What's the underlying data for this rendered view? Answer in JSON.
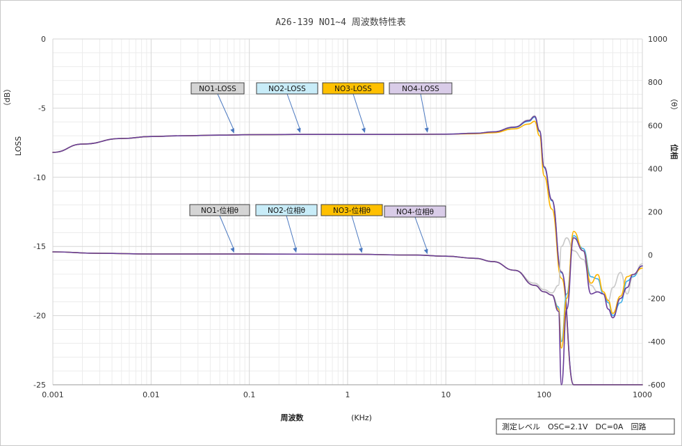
{
  "chart_data": {
    "type": "line",
    "title": "A26-139 NO1~4 周波数特性表",
    "xlabel": "周波数",
    "xunit": "(KHz)",
    "ylabel_left": "LOSS",
    "ylabel_left_unit": "（dB）",
    "ylabel_right": "位相",
    "ylabel_right_unit": "（θ）",
    "xscale": "log",
    "xlim": [
      0.001,
      1000
    ],
    "ylim_left": [
      -25,
      0
    ],
    "ylim_right": [
      -600,
      1000
    ],
    "grid": true,
    "x_ticks": [
      "0.001",
      "0.01",
      "0.1",
      "1",
      "10",
      "100",
      "1000"
    ],
    "y_left_ticks": [
      "0",
      "-5",
      "-10",
      "-15",
      "-20",
      "-25"
    ],
    "y_right_ticks": [
      "1000",
      "800",
      "600",
      "400",
      "200",
      "0",
      "-200",
      "-400",
      "-600"
    ],
    "note": "測定レベル　OSC=2.1V　DC=0A　回路",
    "series": [
      {
        "name": "NO1-LOSS",
        "axis": "left",
        "color": "#c8c8c8",
        "x": [
          0.001,
          0.002,
          0.005,
          0.01,
          0.02,
          0.05,
          0.1,
          0.3,
          1,
          3,
          10,
          20,
          30,
          50,
          70,
          80,
          90,
          100,
          120,
          150,
          200,
          300,
          500,
          700,
          1000
        ],
        "y": [
          -8.2,
          -7.6,
          -7.2,
          -7.05,
          -7.0,
          -6.95,
          -6.92,
          -6.9,
          -6.9,
          -6.9,
          -6.88,
          -6.82,
          -6.72,
          -6.35,
          -5.85,
          -5.55,
          -6.6,
          -9.2,
          -11.6,
          -16.8,
          -25.2,
          -25.4,
          -25.3,
          -25.3,
          -25.2
        ]
      },
      {
        "name": "NO2-LOSS",
        "axis": "left",
        "color": "#3aaee8",
        "x": [
          0.001,
          0.002,
          0.005,
          0.01,
          0.02,
          0.05,
          0.1,
          0.3,
          1,
          3,
          10,
          20,
          30,
          50,
          70,
          80,
          90,
          100,
          120,
          150,
          200,
          300,
          500,
          700,
          1000
        ],
        "y": [
          -8.2,
          -7.6,
          -7.2,
          -7.05,
          -7.0,
          -6.95,
          -6.92,
          -6.9,
          -6.9,
          -6.9,
          -6.88,
          -6.82,
          -6.72,
          -6.4,
          -5.95,
          -5.65,
          -6.7,
          -9.3,
          -11.7,
          -16.9,
          -25.2,
          -25.4,
          -25.3,
          -25.3,
          -25.2
        ]
      },
      {
        "name": "NO3-LOSS",
        "axis": "left",
        "color": "#ffb400",
        "x": [
          0.001,
          0.002,
          0.005,
          0.01,
          0.02,
          0.05,
          0.1,
          0.3,
          1,
          3,
          10,
          20,
          30,
          50,
          70,
          80,
          90,
          100,
          120,
          150,
          200,
          300,
          500,
          700,
          1000
        ],
        "y": [
          -8.2,
          -7.6,
          -7.2,
          -7.05,
          -7.0,
          -6.95,
          -6.92,
          -6.9,
          -6.9,
          -6.9,
          -6.88,
          -6.85,
          -6.78,
          -6.5,
          -6.15,
          -5.95,
          -7.0,
          -9.9,
          -12.3,
          -17.3,
          -25.2,
          -25.4,
          -25.3,
          -25.3,
          -25.2
        ]
      },
      {
        "name": "NO4-LOSS",
        "axis": "left",
        "color": "#6a3d9a",
        "x": [
          0.001,
          0.002,
          0.005,
          0.01,
          0.02,
          0.05,
          0.1,
          0.3,
          1,
          3,
          10,
          20,
          30,
          50,
          70,
          80,
          90,
          100,
          120,
          150,
          200,
          300,
          500,
          700,
          1000
        ],
        "y": [
          -8.2,
          -7.6,
          -7.2,
          -7.05,
          -7.0,
          -6.95,
          -6.92,
          -6.9,
          -6.9,
          -6.9,
          -6.88,
          -6.82,
          -6.72,
          -6.38,
          -5.9,
          -5.6,
          -6.65,
          -9.25,
          -11.65,
          -16.85,
          -25.2,
          -25.4,
          -25.3,
          -25.3,
          -25.2
        ]
      },
      {
        "name": "NO1-位相θ",
        "axis": "right",
        "color": "#c8c8c8",
        "x": [
          0.001,
          0.003,
          0.01,
          0.1,
          1,
          5,
          10,
          20,
          30,
          50,
          80,
          100,
          120,
          140,
          150,
          170,
          200,
          250,
          300,
          350,
          400,
          450,
          500,
          600,
          700,
          800,
          1000
        ],
        "y": [
          15,
          8,
          5,
          5,
          4,
          0,
          -5,
          -15,
          -30,
          -70,
          -130,
          -160,
          -175,
          -140,
          40,
          80,
          20,
          -20,
          -140,
          -170,
          -180,
          -210,
          -150,
          -80,
          -180,
          -100,
          -40
        ]
      },
      {
        "name": "NO2-位相θ",
        "axis": "right",
        "color": "#3aaee8",
        "x": [
          0.001,
          0.003,
          0.01,
          0.1,
          1,
          5,
          10,
          20,
          30,
          50,
          80,
          100,
          120,
          140,
          150,
          170,
          200,
          250,
          300,
          350,
          400,
          450,
          500,
          600,
          700,
          800,
          1000
        ],
        "y": [
          15,
          8,
          5,
          5,
          4,
          0,
          -5,
          -15,
          -30,
          -70,
          -140,
          -170,
          -185,
          -240,
          -400,
          -180,
          90,
          30,
          -100,
          -110,
          -180,
          -220,
          -280,
          -220,
          -120,
          -100,
          -50
        ]
      },
      {
        "name": "NO3-位相θ",
        "axis": "right",
        "color": "#ffb400",
        "x": [
          0.001,
          0.003,
          0.01,
          0.1,
          1,
          5,
          10,
          20,
          30,
          50,
          80,
          100,
          120,
          140,
          150,
          170,
          200,
          250,
          300,
          350,
          400,
          450,
          500,
          600,
          700,
          800,
          1000
        ],
        "y": [
          15,
          8,
          5,
          5,
          4,
          0,
          -5,
          -15,
          -30,
          -70,
          -140,
          -170,
          -185,
          -250,
          -430,
          -200,
          110,
          20,
          -130,
          -90,
          -170,
          -210,
          -270,
          -190,
          -100,
          -90,
          -60
        ]
      },
      {
        "name": "NO4-位相θ",
        "axis": "right",
        "color": "#6a3d9a",
        "x": [
          0.001,
          0.003,
          0.01,
          0.1,
          1,
          5,
          10,
          20,
          30,
          50,
          80,
          100,
          120,
          140,
          150,
          170,
          200,
          250,
          300,
          350,
          400,
          450,
          500,
          600,
          700,
          800,
          1000
        ],
        "y": [
          15,
          8,
          5,
          5,
          4,
          0,
          -5,
          -15,
          -30,
          -70,
          -140,
          -170,
          -185,
          -260,
          -600,
          -250,
          80,
          20,
          -180,
          -170,
          -180,
          -250,
          -290,
          -200,
          -150,
          -90,
          -50
        ]
      }
    ],
    "annotations": [
      {
        "text": "NO1-LOSS",
        "fill": "#d4d4d4",
        "target_series": 0,
        "target_x": 0.07
      },
      {
        "text": "NO2-LOSS",
        "fill": "#c8ecf8",
        "target_series": 1,
        "target_x": 0.33
      },
      {
        "text": "NO3-LOSS",
        "fill": "#ffc000",
        "target_series": 2,
        "target_x": 1.5
      },
      {
        "text": "NO4-LOSS",
        "fill": "#d9cce8",
        "target_series": 3,
        "target_x": 6.5
      },
      {
        "text": "NO1-位相θ",
        "fill": "#d4d4d4",
        "target_series": 4,
        "target_x": 0.07
      },
      {
        "text": "NO2-位相θ",
        "fill": "#c8ecf8",
        "target_series": 5,
        "target_x": 0.3
      },
      {
        "text": "NO3-位相θ",
        "fill": "#ffc000",
        "target_series": 6,
        "target_x": 1.4
      },
      {
        "text": "NO4-位相θ",
        "fill": "#d9cce8",
        "target_series": 7,
        "target_x": 6.5
      }
    ]
  }
}
